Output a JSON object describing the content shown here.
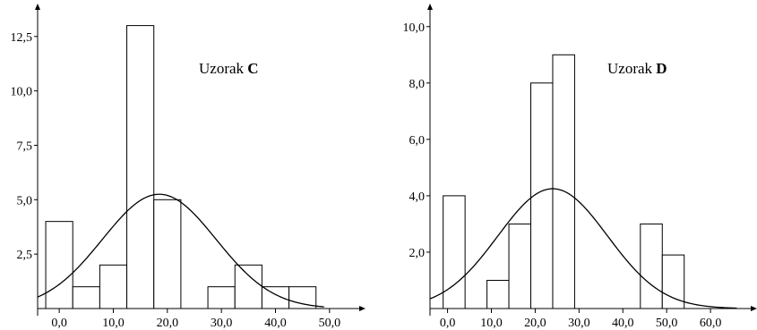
{
  "chart_data": [
    {
      "type": "bar",
      "chart_kind": "histogram with fitted normal curve",
      "title_prefix": "Uzorak",
      "title_letter": "C",
      "xlim": [
        -4,
        55
      ],
      "ylim": [
        0,
        13.6
      ],
      "xticks": [
        0,
        10,
        20,
        30,
        40,
        50
      ],
      "xtick_labels": [
        "0,0",
        "10,0",
        "20,0",
        "30,0",
        "40,0",
        "50,0"
      ],
      "yticks": [
        2.5,
        5.0,
        7.5,
        10.0,
        12.5
      ],
      "ytick_labels": [
        "2,5",
        "5,0",
        "7,5",
        "10,0",
        "12,5"
      ],
      "bins": [
        {
          "from": -2.5,
          "to": 2.5,
          "value": 4
        },
        {
          "from": 2.5,
          "to": 7.5,
          "value": 1
        },
        {
          "from": 7.5,
          "to": 12.5,
          "value": 2
        },
        {
          "from": 12.5,
          "to": 17.5,
          "value": 13
        },
        {
          "from": 17.5,
          "to": 22.5,
          "value": 5
        },
        {
          "from": 27.5,
          "to": 32.5,
          "value": 1
        },
        {
          "from": 32.5,
          "to": 37.5,
          "value": 2
        },
        {
          "from": 37.5,
          "to": 42.5,
          "value": 1
        },
        {
          "from": 42.5,
          "to": 47.5,
          "value": 1
        }
      ],
      "normal_curve": {
        "mean": 18.5,
        "sd": 10.5,
        "peak": 5.25,
        "x_range": [
          -4,
          49
        ]
      },
      "grid": false,
      "legend": "none"
    },
    {
      "type": "bar",
      "chart_kind": "histogram with fitted normal curve",
      "title_prefix": "Uzorak",
      "title_letter": "D",
      "xlim": [
        -4,
        70
      ],
      "ylim": [
        0,
        10.5
      ],
      "xticks": [
        0,
        10,
        20,
        30,
        40,
        50,
        60
      ],
      "xtick_labels": [
        "0,0",
        "10,0",
        "20,0",
        "30,0",
        "40,0",
        "50,0",
        "60,0"
      ],
      "yticks": [
        2.0,
        4.0,
        6.0,
        8.0,
        10.0
      ],
      "ytick_labels": [
        "2,0",
        "4,0",
        "6,0",
        "8,0",
        "10,0"
      ],
      "bins": [
        {
          "from": -1,
          "to": 4,
          "value": 4
        },
        {
          "from": 9,
          "to": 14,
          "value": 1
        },
        {
          "from": 14,
          "to": 19,
          "value": 3
        },
        {
          "from": 19,
          "to": 24,
          "value": 8
        },
        {
          "from": 24,
          "to": 29,
          "value": 9
        },
        {
          "from": 44,
          "to": 49,
          "value": 3
        },
        {
          "from": 49,
          "to": 54,
          "value": 1.9
        }
      ],
      "normal_curve": {
        "mean": 24,
        "sd": 12.5,
        "peak": 4.25,
        "x_range": [
          -4,
          66
        ]
      },
      "grid": false,
      "legend": "none"
    }
  ]
}
